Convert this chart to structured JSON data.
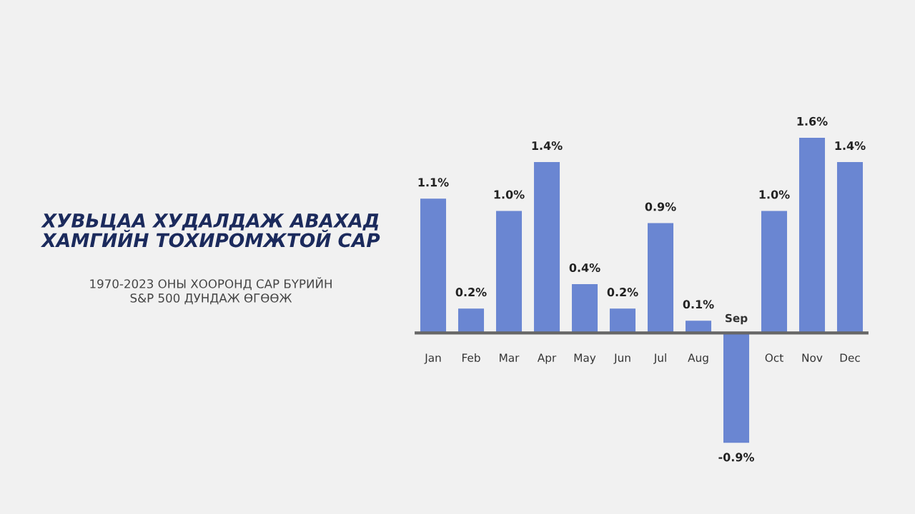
{
  "chart_data": {
    "type": "bar",
    "title": "ХУВЬЦАА ХУДАЛДАЖ АВАХАД\nХАМГИЙН ТОХИРОМЖТОЙ САР",
    "subtitle": "1970-2023 ОНЫ ХООРОНД САР БҮРИЙН\nS&P 500 ДУНДАЖ ӨГӨӨЖ",
    "categories": [
      "Jan",
      "Feb",
      "Mar",
      "Apr",
      "May",
      "Jun",
      "Jul",
      "Aug",
      "Sep",
      "Oct",
      "Nov",
      "Dec"
    ],
    "values": [
      1.1,
      0.2,
      1.0,
      1.4,
      0.4,
      0.2,
      0.9,
      0.1,
      -0.9,
      1.0,
      1.6,
      1.4
    ],
    "value_labels": [
      "1.1%",
      "0.2%",
      "1.0%",
      "1.4%",
      "0.4%",
      "0.2%",
      "0.9%",
      "0.1%",
      "-0.9%",
      "1.0%",
      "1.6%",
      "1.4%"
    ],
    "color": "#6a86d2"
  }
}
